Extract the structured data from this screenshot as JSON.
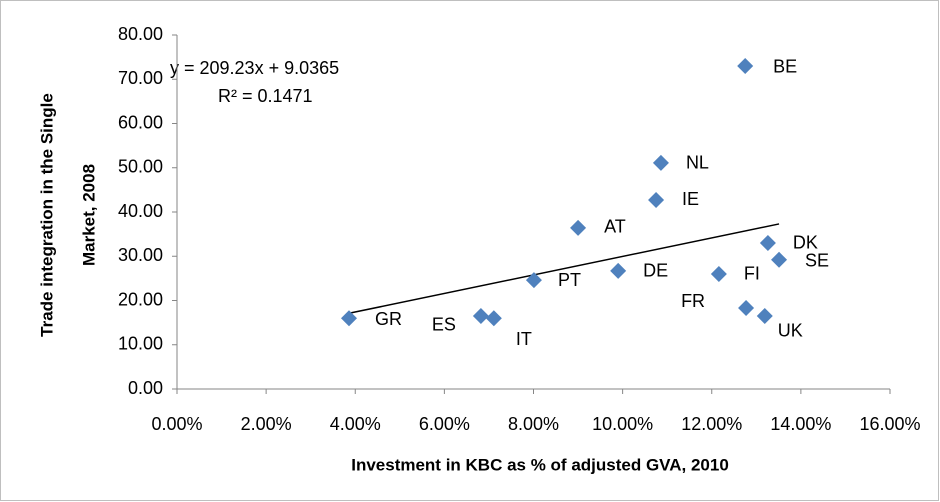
{
  "chart_data": {
    "type": "scatter",
    "xlabel": "Investment in KBC as % of adjusted GVA, 2010",
    "ylabel_lines": [
      "Trade integration in the Single",
      "Market, 2008"
    ],
    "x": [
      0.0386,
      0.0682,
      0.0711,
      0.0801,
      0.09,
      0.099,
      0.1075,
      0.1086,
      0.1275,
      0.1216,
      0.1277,
      0.1319,
      0.1326,
      0.1351
    ],
    "values": [
      16.0,
      16.5,
      16.0,
      24.6,
      36.4,
      26.7,
      42.7,
      51.1,
      73.0,
      26.0,
      18.3,
      16.5,
      33.0,
      29.2
    ],
    "point_labels": [
      "GR",
      "ES",
      "IT",
      "PT",
      "AT",
      "DE",
      "IE",
      "NL",
      "BE",
      "FI",
      "FR",
      "UK",
      "DK",
      "SE"
    ],
    "color": "#4f81bd",
    "xlim": [
      0,
      0.16
    ],
    "xticks": [
      {
        "value": 0,
        "label": "0.00%"
      },
      {
        "value": 0.02,
        "label": "2.00%"
      },
      {
        "value": 0.04,
        "label": "4.00%"
      },
      {
        "value": 0.06,
        "label": "6.00%"
      },
      {
        "value": 0.08,
        "label": "8.00%"
      },
      {
        "value": 0.1,
        "label": "10.00%"
      },
      {
        "value": 0.12,
        "label": "12.00%"
      },
      {
        "value": 0.14,
        "label": "14.00%"
      },
      {
        "value": 0.16,
        "label": "16.00%"
      }
    ],
    "ylim": [
      0,
      80
    ],
    "yticks": [
      {
        "value": 0,
        "label": "0.00"
      },
      {
        "value": 10,
        "label": "10.00"
      },
      {
        "value": 20,
        "label": "20.00"
      },
      {
        "value": 30,
        "label": "30.00"
      },
      {
        "value": 40,
        "label": "40.00"
      },
      {
        "value": 50,
        "label": "50.00"
      },
      {
        "value": 60,
        "label": "60.00"
      },
      {
        "value": 70,
        "label": "70.00"
      },
      {
        "value": 80,
        "label": "80.00"
      }
    ],
    "grid": false,
    "trendline": {
      "equation": "y = 209.23x + 9.0365",
      "r_squared": "R² = 0.1471",
      "slope": 209.23,
      "intercept": 9.0365,
      "color": "#000000"
    }
  }
}
